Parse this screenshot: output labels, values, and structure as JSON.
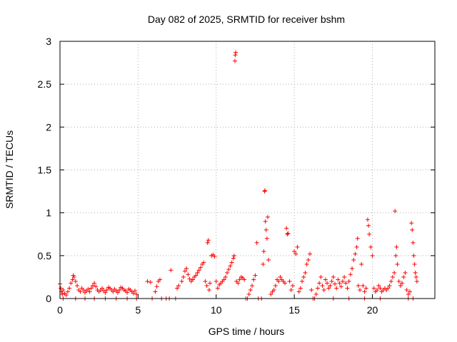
{
  "chart_data": {
    "type": "scatter",
    "title": "Day 082 of 2025, SRMTID for receiver bshm",
    "xlabel": "GPS time / hours",
    "ylabel": "SRMTID / TECUs",
    "xlim": [
      0,
      24
    ],
    "ylim": [
      0,
      3
    ],
    "xticks": [
      0,
      5,
      10,
      15,
      20
    ],
    "yticks": [
      0,
      0.5,
      1,
      1.5,
      2,
      2.5,
      3
    ],
    "ytick_labels": [
      "0",
      "0.5",
      "1",
      "1.5",
      "2",
      "2.5",
      "3"
    ],
    "grid": true,
    "marker": "+",
    "color": "#ff0000",
    "series": [
      {
        "name": "SRMTID",
        "points": [
          [
            0.0,
            0.17
          ],
          [
            0.05,
            0.12
          ],
          [
            0.1,
            0.08
          ],
          [
            0.15,
            0.05
          ],
          [
            0.2,
            0.1
          ],
          [
            0.3,
            0.06
          ],
          [
            0.4,
            0.04
          ],
          [
            0.5,
            0.08
          ],
          [
            0.6,
            0.12
          ],
          [
            0.7,
            0.18
          ],
          [
            0.8,
            0.22
          ],
          [
            0.85,
            0.27
          ],
          [
            0.9,
            0.25
          ],
          [
            1.0,
            0.2
          ],
          [
            1.1,
            0.15
          ],
          [
            1.2,
            0.1
          ],
          [
            1.3,
            0.08
          ],
          [
            1.4,
            0.12
          ],
          [
            1.5,
            0.1
          ],
          [
            1.6,
            0.07
          ],
          [
            1.7,
            0.09
          ],
          [
            1.8,
            0.11
          ],
          [
            1.9,
            0.08
          ],
          [
            2.0,
            0.12
          ],
          [
            2.1,
            0.15
          ],
          [
            2.2,
            0.18
          ],
          [
            2.3,
            0.14
          ],
          [
            2.4,
            0.1
          ],
          [
            2.5,
            0.08
          ],
          [
            2.6,
            0.1
          ],
          [
            2.7,
            0.12
          ],
          [
            2.8,
            0.09
          ],
          [
            2.9,
            0.07
          ],
          [
            3.0,
            0.1
          ],
          [
            3.1,
            0.13
          ],
          [
            3.2,
            0.12
          ],
          [
            3.3,
            0.1
          ],
          [
            3.4,
            0.08
          ],
          [
            3.5,
            0.11
          ],
          [
            3.6,
            0.09
          ],
          [
            3.7,
            0.07
          ],
          [
            3.8,
            0.1
          ],
          [
            3.9,
            0.13
          ],
          [
            4.0,
            0.12
          ],
          [
            4.1,
            0.1
          ],
          [
            4.2,
            0.09
          ],
          [
            4.3,
            0.07
          ],
          [
            4.4,
            0.11
          ],
          [
            4.5,
            0.1
          ],
          [
            4.6,
            0.08
          ],
          [
            4.7,
            0.06
          ],
          [
            4.8,
            0.09
          ],
          [
            4.9,
            0.05
          ],
          [
            0.2,
            0.0
          ],
          [
            1.0,
            0.0
          ],
          [
            1.6,
            0.0
          ],
          [
            2.2,
            0.0
          ],
          [
            2.9,
            0.0
          ],
          [
            3.6,
            0.0
          ],
          [
            4.3,
            0.0
          ],
          [
            4.9,
            0.0
          ],
          [
            5.6,
            0.2
          ],
          [
            5.8,
            0.19
          ],
          [
            5.9,
            0.0
          ],
          [
            6.1,
            0.08
          ],
          [
            6.2,
            0.14
          ],
          [
            6.3,
            0.2
          ],
          [
            6.4,
            0.22
          ],
          [
            6.5,
            0.0
          ],
          [
            6.8,
            0.0
          ],
          [
            7.0,
            0.0
          ],
          [
            7.1,
            0.33
          ],
          [
            7.4,
            0.0
          ],
          [
            7.5,
            0.12
          ],
          [
            7.6,
            0.15
          ],
          [
            7.8,
            0.2
          ],
          [
            7.9,
            0.25
          ],
          [
            8.0,
            0.32
          ],
          [
            8.1,
            0.35
          ],
          [
            8.2,
            0.28
          ],
          [
            8.3,
            0.23
          ],
          [
            8.4,
            0.2
          ],
          [
            8.5,
            0.22
          ],
          [
            8.6,
            0.25
          ],
          [
            8.7,
            0.27
          ],
          [
            8.8,
            0.3
          ],
          [
            8.9,
            0.33
          ],
          [
            9.0,
            0.36
          ],
          [
            9.1,
            0.4
          ],
          [
            9.2,
            0.42
          ],
          [
            9.3,
            0.2
          ],
          [
            9.4,
            0.15
          ],
          [
            9.45,
            0.65
          ],
          [
            9.5,
            0.68
          ],
          [
            9.55,
            0.1
          ],
          [
            9.6,
            0.18
          ],
          [
            9.7,
            0.5
          ],
          [
            9.8,
            0.51
          ],
          [
            9.9,
            0.49
          ],
          [
            10.0,
            0.2
          ],
          [
            10.1,
            0.12
          ],
          [
            10.2,
            0.16
          ],
          [
            10.3,
            0.18
          ],
          [
            10.4,
            0.2
          ],
          [
            10.5,
            0.22
          ],
          [
            10.6,
            0.25
          ],
          [
            10.7,
            0.3
          ],
          [
            10.8,
            0.34
          ],
          [
            10.9,
            0.38
          ],
          [
            11.0,
            0.42
          ],
          [
            11.1,
            0.47
          ],
          [
            11.15,
            0.5
          ],
          [
            11.2,
            2.77
          ],
          [
            11.22,
            2.84
          ],
          [
            11.25,
            2.87
          ],
          [
            11.3,
            0.2
          ],
          [
            11.4,
            0.18
          ],
          [
            11.5,
            0.22
          ],
          [
            11.6,
            0.25
          ],
          [
            11.7,
            0.24
          ],
          [
            11.8,
            0.22
          ],
          [
            11.9,
            0.0
          ],
          [
            12.0,
            0.0
          ],
          [
            12.1,
            0.05
          ],
          [
            12.2,
            0.1
          ],
          [
            12.3,
            0.15
          ],
          [
            12.4,
            0.22
          ],
          [
            12.5,
            0.27
          ],
          [
            12.6,
            0.65
          ],
          [
            12.7,
            0.0
          ],
          [
            12.9,
            0.0
          ],
          [
            13.0,
            0.4
          ],
          [
            13.05,
            0.55
          ],
          [
            13.1,
            1.25
          ],
          [
            13.12,
            1.26
          ],
          [
            13.15,
            0.9
          ],
          [
            13.2,
            0.8
          ],
          [
            13.25,
            0.7
          ],
          [
            13.3,
            0.95
          ],
          [
            13.35,
            0.45
          ],
          [
            13.5,
            0.05
          ],
          [
            13.6,
            0.08
          ],
          [
            13.7,
            0.1
          ],
          [
            13.8,
            0.15
          ],
          [
            13.9,
            0.22
          ],
          [
            14.0,
            0.2
          ],
          [
            14.1,
            0.25
          ],
          [
            14.2,
            0.22
          ],
          [
            14.3,
            0.2
          ],
          [
            14.4,
            0.18
          ],
          [
            14.5,
            0.82
          ],
          [
            14.55,
            0.75
          ],
          [
            14.6,
            0.76
          ],
          [
            14.7,
            0.2
          ],
          [
            14.8,
            0.1
          ],
          [
            14.9,
            0.15
          ],
          [
            15.0,
            0.55
          ],
          [
            15.1,
            0.52
          ],
          [
            15.2,
            0.6
          ],
          [
            15.3,
            0.08
          ],
          [
            15.4,
            0.12
          ],
          [
            15.5,
            0.2
          ],
          [
            15.6,
            0.25
          ],
          [
            15.7,
            0.3
          ],
          [
            15.8,
            0.4
          ],
          [
            15.9,
            0.45
          ],
          [
            16.0,
            0.52
          ],
          [
            16.1,
            0.1
          ],
          [
            16.2,
            0.0
          ],
          [
            16.4,
            0.05
          ],
          [
            16.5,
            0.12
          ],
          [
            16.6,
            0.18
          ],
          [
            16.7,
            0.25
          ],
          [
            16.8,
            0.15
          ],
          [
            16.9,
            0.1
          ],
          [
            17.0,
            0.22
          ],
          [
            17.1,
            0.18
          ],
          [
            17.2,
            0.12
          ],
          [
            17.3,
            0.15
          ],
          [
            17.4,
            0.2
          ],
          [
            17.5,
            0.25
          ],
          [
            17.6,
            0.17
          ],
          [
            17.7,
            0.12
          ],
          [
            17.8,
            0.22
          ],
          [
            17.9,
            0.18
          ],
          [
            18.0,
            0.14
          ],
          [
            18.1,
            0.2
          ],
          [
            18.2,
            0.25
          ],
          [
            18.3,
            0.18
          ],
          [
            18.4,
            0.12
          ],
          [
            18.5,
            0.2
          ],
          [
            18.6,
            0.28
          ],
          [
            18.7,
            0.35
          ],
          [
            18.8,
            0.45
          ],
          [
            18.9,
            0.52
          ],
          [
            19.0,
            0.6
          ],
          [
            19.05,
            0.7
          ],
          [
            19.1,
            0.15
          ],
          [
            19.2,
            0.1
          ],
          [
            19.3,
            0.4
          ],
          [
            19.4,
            0.15
          ],
          [
            19.5,
            0.08
          ],
          [
            19.6,
            0.12
          ],
          [
            19.7,
            0.92
          ],
          [
            19.75,
            0.85
          ],
          [
            19.8,
            0.75
          ],
          [
            19.9,
            0.6
          ],
          [
            20.0,
            0.5
          ],
          [
            20.1,
            0.12
          ],
          [
            20.2,
            0.08
          ],
          [
            20.3,
            0.1
          ],
          [
            20.4,
            0.15
          ],
          [
            20.5,
            0.12
          ],
          [
            20.6,
            0.08
          ],
          [
            20.7,
            0.1
          ],
          [
            20.8,
            0.12
          ],
          [
            20.9,
            0.1
          ],
          [
            21.0,
            0.12
          ],
          [
            21.1,
            0.15
          ],
          [
            21.2,
            0.2
          ],
          [
            21.3,
            0.25
          ],
          [
            21.4,
            0.3
          ],
          [
            21.45,
            1.02
          ],
          [
            21.5,
            0.5
          ],
          [
            21.55,
            0.6
          ],
          [
            21.6,
            0.4
          ],
          [
            21.7,
            0.2
          ],
          [
            21.8,
            0.15
          ],
          [
            21.9,
            0.18
          ],
          [
            22.0,
            0.25
          ],
          [
            22.1,
            0.3
          ],
          [
            22.2,
            0.1
          ],
          [
            22.3,
            0.05
          ],
          [
            22.4,
            0.08
          ],
          [
            22.5,
            0.88
          ],
          [
            22.55,
            0.8
          ],
          [
            22.6,
            0.65
          ],
          [
            22.65,
            0.5
          ],
          [
            22.7,
            0.4
          ],
          [
            22.75,
            0.3
          ],
          [
            22.8,
            0.25
          ],
          [
            22.85,
            0.2
          ],
          [
            16.3,
            0.0
          ],
          [
            17.5,
            0.0
          ],
          [
            18.5,
            0.0
          ],
          [
            19.5,
            0.0
          ],
          [
            20.5,
            0.0
          ],
          [
            22.6,
            0.0
          ],
          [
            22.3,
            0.0
          ]
        ]
      }
    ]
  }
}
